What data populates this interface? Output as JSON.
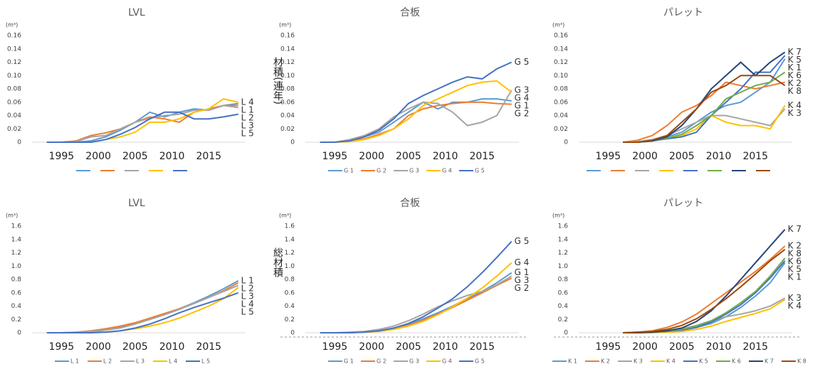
{
  "chart_data": [
    {
      "type": "line",
      "title": "LVL",
      "unit": "(m³)",
      "legend_labels": false,
      "x": [
        1993,
        1995,
        1997,
        1999,
        2001,
        2003,
        2005,
        2007,
        2009,
        2011,
        2013,
        2015,
        2017,
        2019
      ],
      "xlim": [
        1991,
        2020
      ],
      "xticks": [
        1995,
        2000,
        2005,
        2010,
        2015
      ],
      "ylim": [
        0,
        0.16
      ],
      "yticks": [
        0,
        0.02,
        0.04,
        0.06,
        0.08,
        {
          "value": 0.1,
          "label": "0.10"
        },
        0.12,
        0.14,
        0.16
      ],
      "series": [
        {
          "name": "L 1",
          "color": "#5b9bd5",
          "values": [
            0,
            0,
            0,
            0.002,
            0.008,
            0.018,
            0.03,
            0.045,
            0.038,
            0.045,
            0.05,
            0.048,
            0.055,
            0.058
          ]
        },
        {
          "name": "L 2",
          "color": "#ed7d31",
          "values": [
            0,
            0,
            0.002,
            0.01,
            0.014,
            0.02,
            0.03,
            0.038,
            0.035,
            0.03,
            0.045,
            0.05,
            0.055,
            0.055
          ]
        },
        {
          "name": "L 3",
          "color": "#a5a5a5",
          "values": [
            0,
            0,
            0.001,
            0.008,
            0.01,
            0.02,
            0.03,
            0.036,
            0.04,
            0.042,
            0.048,
            0.048,
            0.055,
            0.052
          ]
        },
        {
          "name": "L 4",
          "color": "#ffc000",
          "values": [
            0,
            0,
            0,
            0,
            0.004,
            0.008,
            0.015,
            0.03,
            0.03,
            0.035,
            0.045,
            0.05,
            0.065,
            0.06
          ]
        },
        {
          "name": "L 5",
          "color": "#4472c4",
          "values": [
            0,
            0,
            0,
            0,
            0.004,
            0.012,
            0.022,
            0.035,
            0.045,
            0.045,
            0.035,
            0.035,
            0.038,
            0.042
          ]
        }
      ]
    },
    {
      "type": "line",
      "title": "合板",
      "unit": "(m³)",
      "ylabel": "材積(連年)",
      "legend_labels": true,
      "x": [
        1993,
        1995,
        1997,
        1999,
        2001,
        2003,
        2005,
        2007,
        2009,
        2011,
        2013,
        2015,
        2017,
        2019
      ],
      "xlim": [
        1991,
        2020
      ],
      "xticks": [
        1995,
        2000,
        2005,
        2010,
        2015
      ],
      "ylim": [
        0,
        0.16
      ],
      "yticks": [
        0,
        0.02,
        0.04,
        0.06,
        0.08,
        {
          "value": 0.1,
          "label": "0.10"
        },
        0.12,
        0.14,
        0.16
      ],
      "series": [
        {
          "name": "G 1",
          "color": "#5b9bd5",
          "values": [
            0,
            0,
            0.002,
            0.008,
            0.015,
            0.03,
            0.045,
            0.06,
            0.05,
            0.06,
            0.06,
            0.065,
            0.065,
            0.062
          ]
        },
        {
          "name": "G 2",
          "color": "#ed7d31",
          "values": [
            0,
            0,
            0.002,
            0.005,
            0.012,
            0.02,
            0.04,
            0.05,
            0.055,
            0.058,
            0.06,
            0.06,
            0.058,
            0.057
          ]
        },
        {
          "name": "G 3",
          "color": "#a5a5a5",
          "values": [
            0,
            0,
            0.004,
            0.01,
            0.02,
            0.038,
            0.05,
            0.06,
            0.058,
            0.045,
            0.025,
            0.03,
            0.04,
            0.078
          ]
        },
        {
          "name": "G 4",
          "color": "#ffc000",
          "values": [
            0,
            0,
            0.001,
            0.004,
            0.01,
            0.02,
            0.035,
            0.055,
            0.065,
            0.075,
            0.085,
            0.09,
            0.092,
            0.075
          ]
        },
        {
          "name": "G 5",
          "color": "#4472c4",
          "values": [
            0,
            0,
            0.002,
            0.008,
            0.018,
            0.035,
            0.058,
            0.07,
            0.08,
            0.09,
            0.098,
            0.095,
            0.11,
            0.12
          ]
        }
      ]
    },
    {
      "type": "line",
      "title": "パレット",
      "unit": "(m³)",
      "legend_labels": false,
      "x": [
        1993,
        1995,
        1997,
        1999,
        2001,
        2003,
        2005,
        2007,
        2009,
        2011,
        2013,
        2015,
        2017,
        2019
      ],
      "xlim": [
        1991,
        2020
      ],
      "xticks": [
        1995,
        2000,
        2005,
        2010,
        2015
      ],
      "ylim": [
        0,
        0.16
      ],
      "yticks": [
        0,
        0.02,
        0.04,
        0.06,
        0.08,
        {
          "value": 0.1,
          "label": "0.10"
        },
        0.12,
        0.14,
        0.16
      ],
      "series": [
        {
          "name": "K 1",
          "color": "#5b9bd5",
          "values": [
            null,
            null,
            0,
            0,
            0.002,
            0.008,
            0.015,
            0.03,
            0.045,
            0.055,
            0.06,
            0.075,
            0.09,
            0.125
          ]
        },
        {
          "name": "K 2",
          "color": "#ed7d31",
          "values": [
            null,
            null,
            0,
            0.003,
            0.01,
            0.025,
            0.045,
            0.055,
            0.07,
            0.09,
            0.085,
            0.08,
            0.085,
            0.09
          ]
        },
        {
          "name": "K 3",
          "color": "#a5a5a5",
          "values": [
            null,
            null,
            0,
            0.001,
            0.004,
            0.01,
            0.02,
            0.03,
            0.04,
            0.04,
            0.035,
            0.03,
            0.025,
            0.05
          ]
        },
        {
          "name": "K 4",
          "color": "#ffc000",
          "values": [
            null,
            null,
            0,
            0,
            0.002,
            0.006,
            0.01,
            0.02,
            0.04,
            0.03,
            0.025,
            0.025,
            0.02,
            0.055
          ]
        },
        {
          "name": "K 5",
          "color": "#4472c4",
          "values": [
            null,
            null,
            0,
            0,
            0.002,
            0.005,
            0.008,
            0.015,
            0.04,
            0.06,
            0.08,
            0.105,
            0.105,
            0.13
          ]
        },
        {
          "name": "K 6",
          "color": "#70ad47",
          "values": [
            null,
            null,
            0,
            0,
            0.002,
            0.006,
            0.012,
            0.025,
            0.04,
            0.065,
            0.075,
            0.085,
            0.09,
            0.105
          ]
        },
        {
          "name": "K 7",
          "color": "#264478",
          "values": [
            null,
            null,
            0,
            0,
            0.002,
            0.008,
            0.025,
            0.05,
            0.08,
            0.1,
            0.12,
            0.1,
            0.12,
            0.135
          ]
        },
        {
          "name": "K 8",
          "color": "#9e480e",
          "values": [
            null,
            null,
            0,
            0,
            0.003,
            0.01,
            0.03,
            0.05,
            0.075,
            0.085,
            0.1,
            0.1,
            0.1,
            0.085
          ]
        }
      ]
    },
    {
      "type": "line",
      "title": "LVL",
      "unit": "(m³)",
      "legend_labels": true,
      "x": [
        1993,
        1995,
        1997,
        1999,
        2001,
        2003,
        2005,
        2007,
        2009,
        2011,
        2013,
        2015,
        2017,
        2019
      ],
      "xlim": [
        1991,
        2020
      ],
      "xticks": [
        1995,
        2000,
        2005,
        2010,
        2015
      ],
      "ylim": [
        0,
        1.6
      ],
      "yticks": [
        0,
        0.2,
        0.4,
        0.6,
        0.8,
        {
          "value": 1,
          "label": "1.0"
        },
        1.2,
        1.4,
        1.6
      ],
      "series": [
        {
          "name": "L 1",
          "color": "#5b9bd5",
          "values": [
            0,
            0,
            0,
            0.01,
            0.04,
            0.08,
            0.14,
            0.2,
            0.28,
            0.36,
            0.45,
            0.55,
            0.66,
            0.78
          ]
        },
        {
          "name": "L 2",
          "color": "#ed7d31",
          "values": [
            0,
            0,
            0.01,
            0.03,
            0.06,
            0.1,
            0.15,
            0.22,
            0.29,
            0.36,
            0.44,
            0.53,
            0.63,
            0.75
          ]
        },
        {
          "name": "L 3",
          "color": "#a5a5a5",
          "values": [
            0,
            0,
            0.01,
            0.02,
            0.04,
            0.07,
            0.13,
            0.2,
            0.27,
            0.35,
            0.44,
            0.53,
            0.62,
            0.71
          ]
        },
        {
          "name": "L 4",
          "color": "#ffc000",
          "values": [
            0,
            0,
            0,
            0,
            0.01,
            0.03,
            0.06,
            0.1,
            0.15,
            0.22,
            0.31,
            0.4,
            0.51,
            0.68
          ]
        },
        {
          "name": "L 5",
          "color": "#4472c4",
          "values": [
            0,
            0,
            0,
            0,
            0.01,
            0.03,
            0.07,
            0.13,
            0.21,
            0.3,
            0.38,
            0.45,
            0.52,
            0.6
          ]
        }
      ]
    },
    {
      "type": "line",
      "title": "合板",
      "unit": "(m³)",
      "ylabel": "総材積",
      "legend_labels": true,
      "x": [
        1993,
        1995,
        1997,
        1999,
        2001,
        2003,
        2005,
        2007,
        2009,
        2011,
        2013,
        2015,
        2017,
        2019
      ],
      "xlim": [
        1991,
        2020
      ],
      "xticks": [
        1995,
        2000,
        2005,
        2010,
        2015
      ],
      "ylim": [
        0,
        1.6
      ],
      "yticks": [
        0,
        0.2,
        0.4,
        0.6,
        0.8,
        {
          "value": 1,
          "label": "1.0"
        },
        1.2,
        1.4,
        1.6
      ],
      "series": [
        {
          "name": "G 1",
          "color": "#5b9bd5",
          "values": [
            0,
            0,
            0,
            0.01,
            0.03,
            0.07,
            0.13,
            0.21,
            0.3,
            0.4,
            0.51,
            0.62,
            0.75,
            0.9
          ]
        },
        {
          "name": "G 2",
          "color": "#ed7d31",
          "values": [
            0,
            0,
            0,
            0.01,
            0.03,
            0.06,
            0.11,
            0.19,
            0.28,
            0.38,
            0.49,
            0.6,
            0.71,
            0.82
          ]
        },
        {
          "name": "G 3",
          "color": "#a5a5a5",
          "values": [
            0,
            0,
            0.01,
            0.02,
            0.05,
            0.1,
            0.18,
            0.28,
            0.39,
            0.48,
            0.56,
            0.62,
            0.72,
            0.85
          ]
        },
        {
          "name": "G 4",
          "color": "#ffc000",
          "values": [
            0,
            0,
            0,
            0.01,
            0.02,
            0.05,
            0.1,
            0.17,
            0.27,
            0.39,
            0.52,
            0.67,
            0.85,
            1.05
          ]
        },
        {
          "name": "G 5",
          "color": "#4472c4",
          "values": [
            0,
            0,
            0,
            0.01,
            0.03,
            0.07,
            0.14,
            0.24,
            0.37,
            0.51,
            0.69,
            0.9,
            1.13,
            1.37
          ]
        }
      ]
    },
    {
      "type": "line",
      "title": "パレット",
      "unit": "(m³)",
      "legend_labels": true,
      "x": [
        1993,
        1995,
        1997,
        1999,
        2001,
        2003,
        2005,
        2007,
        2009,
        2011,
        2013,
        2015,
        2017,
        2019
      ],
      "xlim": [
        1991,
        2020
      ],
      "xticks": [
        1995,
        2000,
        2005,
        2010,
        2015
      ],
      "ylim": [
        0,
        1.6
      ],
      "yticks": [
        0,
        0.2,
        0.4,
        0.6,
        0.8,
        {
          "value": 1,
          "label": "1.0"
        },
        1.2,
        1.4,
        1.6
      ],
      "series": [
        {
          "name": "K 1",
          "color": "#5b9bd5",
          "values": [
            null,
            null,
            0,
            0,
            0.01,
            0.02,
            0.04,
            0.08,
            0.14,
            0.24,
            0.38,
            0.55,
            0.75,
            1.05
          ]
        },
        {
          "name": "K 2",
          "color": "#ed7d31",
          "values": [
            null,
            null,
            0,
            0.01,
            0.03,
            0.08,
            0.16,
            0.28,
            0.44,
            0.6,
            0.76,
            0.92,
            1.1,
            1.3
          ]
        },
        {
          "name": "K 3",
          "color": "#a5a5a5",
          "values": [
            null,
            null,
            0,
            0,
            0.01,
            0.03,
            0.06,
            0.11,
            0.18,
            0.24,
            0.28,
            0.33,
            0.4,
            0.52
          ]
        },
        {
          "name": "K 4",
          "color": "#ffc000",
          "values": [
            null,
            null,
            0,
            0,
            0,
            0.01,
            0.02,
            0.05,
            0.1,
            0.17,
            0.23,
            0.29,
            0.36,
            0.5
          ]
        },
        {
          "name": "K 5",
          "color": "#4472c4",
          "values": [
            null,
            null,
            0,
            0,
            0.01,
            0.02,
            0.04,
            0.08,
            0.16,
            0.28,
            0.42,
            0.6,
            0.82,
            1.08
          ]
        },
        {
          "name": "K 6",
          "color": "#70ad47",
          "values": [
            null,
            null,
            0,
            0,
            0.01,
            0.02,
            0.05,
            0.1,
            0.18,
            0.3,
            0.45,
            0.62,
            0.85,
            1.12
          ]
        },
        {
          "name": "K 7",
          "color": "#264478",
          "values": [
            null,
            null,
            0,
            0,
            0.01,
            0.03,
            0.07,
            0.17,
            0.33,
            0.55,
            0.8,
            1.05,
            1.3,
            1.55
          ]
        },
        {
          "name": "K 8",
          "color": "#9e480e",
          "values": [
            null,
            null,
            0,
            0.01,
            0.02,
            0.05,
            0.11,
            0.21,
            0.35,
            0.51,
            0.69,
            0.88,
            1.08,
            1.25
          ]
        }
      ]
    }
  ]
}
